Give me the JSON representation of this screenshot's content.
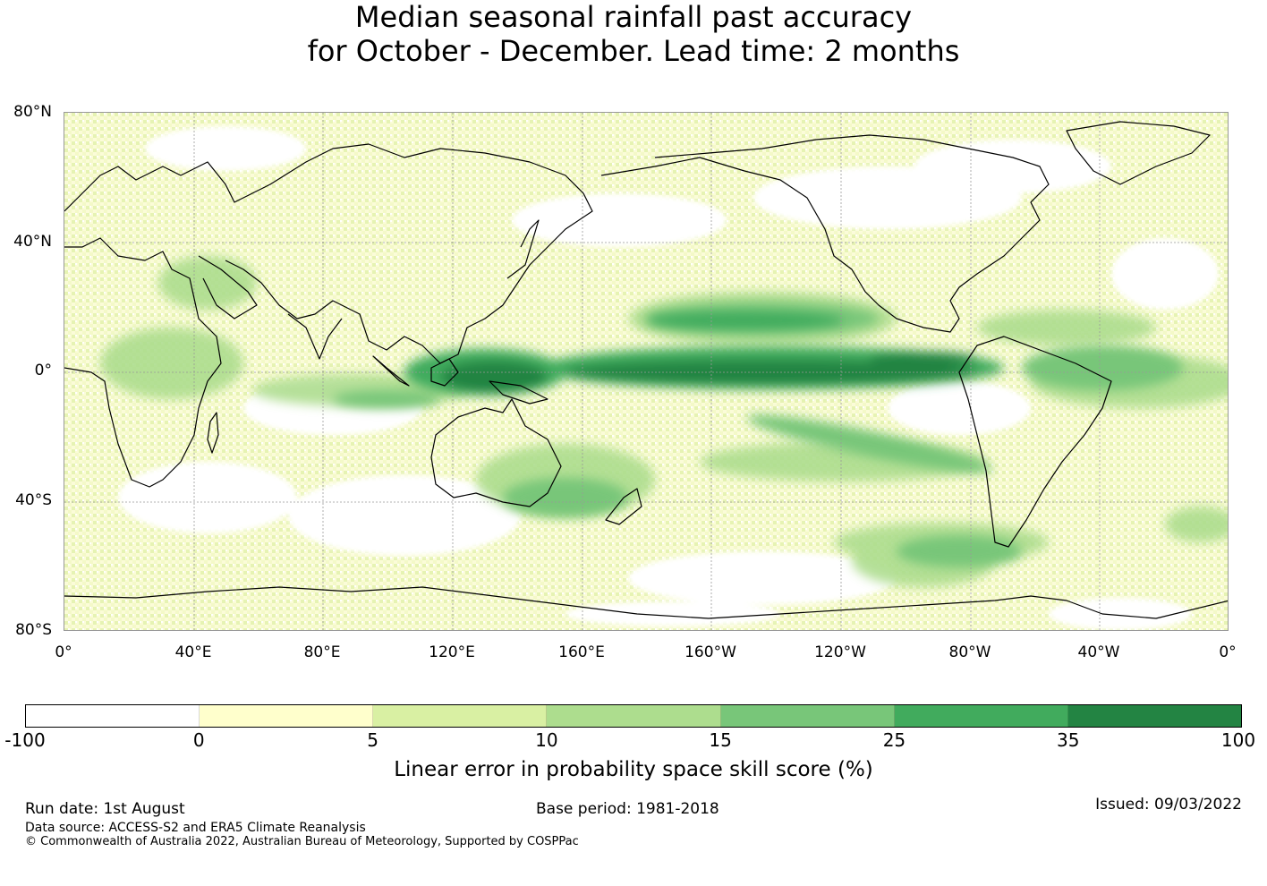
{
  "title": {
    "line1": "Median seasonal rainfall past accuracy",
    "line2": "for October - December. Lead time: 2 months"
  },
  "map": {
    "projection": "equirectangular",
    "lon_range": [
      0,
      360
    ],
    "lat_range": [
      -80,
      80
    ],
    "lat_labels": [
      "80°N",
      "40°N",
      "0°",
      "40°S",
      "80°S"
    ],
    "lon_labels": [
      "0°",
      "40°E",
      "80°E",
      "120°E",
      "160°E",
      "160°W",
      "120°W",
      "80°W",
      "40°W",
      "0°"
    ],
    "coastline_color": "#000000",
    "gridline_color": "#999999"
  },
  "colorbar": {
    "ticks": [
      "-100",
      "0",
      "5",
      "10",
      "15",
      "25",
      "35",
      "100"
    ],
    "colors": [
      "#ffffff",
      "#ffffcc",
      "#d9f0a3",
      "#addd8e",
      "#78c679",
      "#41ab5d",
      "#238443"
    ],
    "label": "Linear error in probability space skill score (%)"
  },
  "footer": {
    "run_date": "Run date: 1st August",
    "base_period": "Base period: 1981-2018",
    "issued": "Issued: 09/03/2022",
    "data_source": "Data source: ACCESS-S2 and ERA5 Climate Reanalysis",
    "copyright": "© Commonwealth of Australia 2022, Australian Bureau of Meteorology, Supported by COSPPac"
  }
}
